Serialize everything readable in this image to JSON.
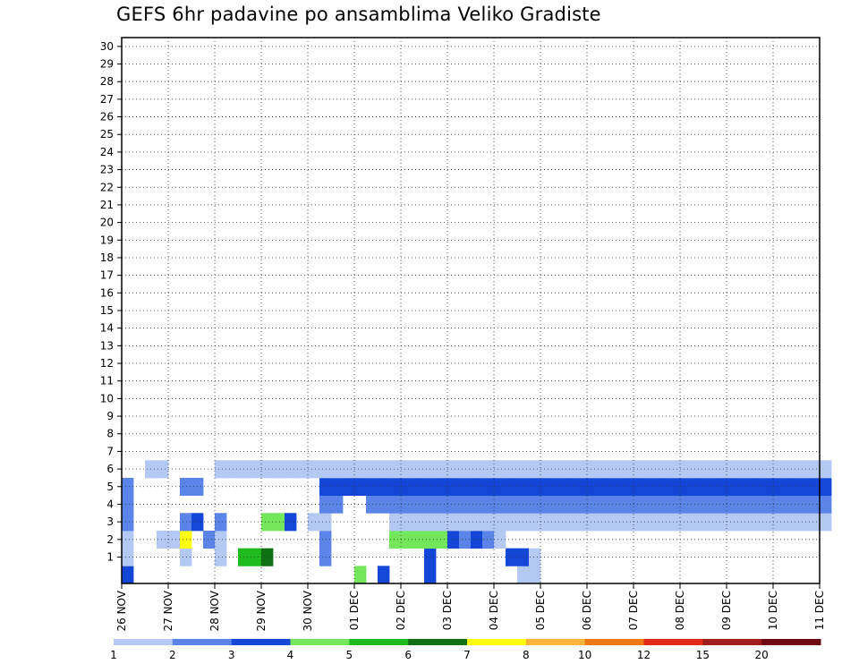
{
  "chart_data": {
    "type": "heatmap",
    "title": "GEFS 6hr padavine po ansamblima Veliko Gradiste",
    "xlabel": "",
    "ylabel": "",
    "x_tick_labels": [
      "26 NOV",
      "27 NOV",
      "28 NOV",
      "29 NOV",
      "30 NOV",
      "01 DEC",
      "02 DEC",
      "03 DEC",
      "04 DEC",
      "05 DEC",
      "06 DEC",
      "07 DEC",
      "08 DEC",
      "09 DEC",
      "10 DEC",
      "11 DEC"
    ],
    "y_tick_labels": [
      "1",
      "2",
      "3",
      "4",
      "5",
      "6",
      "7",
      "8",
      "9",
      "10",
      "11",
      "12",
      "13",
      "14",
      "15",
      "16",
      "17",
      "18",
      "19",
      "20",
      "21",
      "22",
      "23",
      "24",
      "25",
      "26",
      "27",
      "28",
      "29",
      "30"
    ],
    "x_range_hours": [
      0,
      360
    ],
    "y_range": [
      0,
      30
    ],
    "timestep_hours": 6,
    "grid": true,
    "colorbar": {
      "labels": [
        "1",
        "2",
        "3",
        "4",
        "5",
        "6",
        "7",
        "8",
        "10",
        "12",
        "15",
        "20"
      ],
      "colors": [
        "#b4c8f4",
        "#5a84e8",
        "#1446d8",
        "#74e65c",
        "#1eba1e",
        "#0f7014",
        "#ffff0f",
        "#fab43c",
        "#f07814",
        "#dc2d14",
        "#a01e1e",
        "#6e0a14"
      ]
    },
    "series": [
      {
        "member": 0,
        "cells": [
          [
            0,
            3
          ],
          [
            20,
            4
          ],
          [
            22,
            3
          ],
          [
            26,
            3
          ],
          [
            34,
            1
          ],
          [
            35,
            1
          ]
        ]
      },
      {
        "member": 1,
        "cells": [
          [
            0,
            1
          ],
          [
            5,
            1
          ],
          [
            8,
            1
          ],
          [
            10,
            5
          ],
          [
            11,
            5
          ],
          [
            12,
            6
          ],
          [
            17,
            2
          ],
          [
            26,
            3
          ],
          [
            33,
            3
          ],
          [
            34,
            3
          ],
          [
            35,
            1
          ]
        ]
      },
      {
        "member": 2,
        "cells": [
          [
            0,
            1
          ],
          [
            3,
            1
          ],
          [
            4,
            1
          ],
          [
            5,
            7
          ],
          [
            7,
            2
          ],
          [
            8,
            1
          ],
          [
            17,
            2
          ],
          [
            23,
            4
          ],
          [
            24,
            4
          ],
          [
            25,
            4
          ],
          [
            26,
            4
          ],
          [
            27,
            4
          ],
          [
            28,
            3
          ],
          [
            29,
            2
          ],
          [
            30,
            3
          ],
          [
            31,
            2
          ],
          [
            32,
            1
          ]
        ]
      },
      {
        "member": 3,
        "cells": [
          [
            0,
            2
          ],
          [
            5,
            2
          ],
          [
            6,
            3
          ],
          [
            8,
            2
          ],
          [
            12,
            4
          ],
          [
            13,
            4
          ],
          [
            14,
            3
          ],
          [
            16,
            1
          ],
          [
            17,
            1
          ],
          [
            23,
            1
          ],
          [
            24,
            1
          ],
          [
            25,
            1
          ],
          [
            26,
            1
          ],
          [
            27,
            1
          ],
          [
            28,
            1
          ],
          [
            29,
            1
          ],
          [
            30,
            1
          ],
          [
            31,
            1
          ],
          [
            32,
            1
          ],
          [
            33,
            1
          ],
          [
            34,
            1
          ],
          [
            35,
            1
          ],
          [
            36,
            1
          ],
          [
            37,
            1
          ],
          [
            38,
            1
          ],
          [
            39,
            1
          ],
          [
            40,
            1
          ],
          [
            41,
            1
          ],
          [
            42,
            1
          ],
          [
            43,
            1
          ],
          [
            44,
            1
          ],
          [
            45,
            1
          ],
          [
            46,
            1
          ],
          [
            47,
            1
          ],
          [
            48,
            1
          ],
          [
            49,
            1
          ],
          [
            50,
            1
          ],
          [
            51,
            1
          ],
          [
            52,
            1
          ],
          [
            53,
            1
          ],
          [
            54,
            1
          ],
          [
            55,
            1
          ],
          [
            56,
            1
          ],
          [
            57,
            1
          ],
          [
            58,
            1
          ],
          [
            59,
            1
          ],
          [
            60,
            1
          ]
        ]
      },
      {
        "member": 4,
        "cells": [
          [
            0,
            2
          ],
          [
            17,
            2
          ],
          [
            18,
            2
          ],
          [
            21,
            2
          ],
          [
            22,
            2
          ],
          [
            23,
            2
          ],
          [
            24,
            2
          ],
          [
            25,
            2
          ],
          [
            26,
            2
          ],
          [
            27,
            2
          ],
          [
            28,
            2
          ],
          [
            29,
            2
          ],
          [
            30,
            2
          ],
          [
            31,
            2
          ],
          [
            32,
            2
          ],
          [
            33,
            2
          ],
          [
            34,
            2
          ],
          [
            35,
            2
          ],
          [
            36,
            2
          ],
          [
            37,
            2
          ],
          [
            38,
            2
          ],
          [
            39,
            2
          ],
          [
            40,
            2
          ],
          [
            41,
            2
          ],
          [
            42,
            2
          ],
          [
            43,
            2
          ],
          [
            44,
            2
          ],
          [
            45,
            2
          ],
          [
            46,
            2
          ],
          [
            47,
            2
          ],
          [
            48,
            2
          ],
          [
            49,
            2
          ],
          [
            50,
            2
          ],
          [
            51,
            2
          ],
          [
            52,
            2
          ],
          [
            53,
            2
          ],
          [
            54,
            2
          ],
          [
            55,
            2
          ],
          [
            56,
            2
          ],
          [
            57,
            2
          ],
          [
            58,
            2
          ],
          [
            59,
            2
          ],
          [
            60,
            2
          ]
        ]
      },
      {
        "member": 5,
        "cells": [
          [
            0,
            2
          ],
          [
            5,
            2
          ],
          [
            6,
            2
          ],
          [
            17,
            3
          ],
          [
            18,
            3
          ],
          [
            19,
            3
          ],
          [
            20,
            3
          ],
          [
            21,
            3
          ],
          [
            22,
            3
          ],
          [
            23,
            3
          ],
          [
            24,
            3
          ],
          [
            25,
            3
          ],
          [
            26,
            3
          ],
          [
            27,
            3
          ],
          [
            28,
            3
          ],
          [
            29,
            3
          ],
          [
            30,
            3
          ],
          [
            31,
            3
          ],
          [
            32,
            3
          ],
          [
            33,
            3
          ],
          [
            34,
            3
          ],
          [
            35,
            3
          ],
          [
            36,
            3
          ],
          [
            37,
            3
          ],
          [
            38,
            3
          ],
          [
            39,
            3
          ],
          [
            40,
            3
          ],
          [
            41,
            3
          ],
          [
            42,
            3
          ],
          [
            43,
            3
          ],
          [
            44,
            3
          ],
          [
            45,
            3
          ],
          [
            46,
            3
          ],
          [
            47,
            3
          ],
          [
            48,
            3
          ],
          [
            49,
            3
          ],
          [
            50,
            3
          ],
          [
            51,
            3
          ],
          [
            52,
            3
          ],
          [
            53,
            3
          ],
          [
            54,
            3
          ],
          [
            55,
            3
          ],
          [
            56,
            3
          ],
          [
            57,
            3
          ],
          [
            58,
            3
          ],
          [
            59,
            3
          ],
          [
            60,
            3
          ]
        ]
      },
      {
        "member": 6,
        "cells": [
          [
            2,
            1
          ],
          [
            3,
            1
          ],
          [
            8,
            1
          ],
          [
            9,
            1
          ],
          [
            10,
            1
          ],
          [
            11,
            1
          ],
          [
            12,
            1
          ],
          [
            13,
            1
          ],
          [
            14,
            1
          ],
          [
            15,
            1
          ],
          [
            16,
            1
          ],
          [
            17,
            1
          ],
          [
            18,
            1
          ],
          [
            19,
            1
          ],
          [
            20,
            1
          ],
          [
            21,
            1
          ],
          [
            22,
            1
          ],
          [
            23,
            1
          ],
          [
            24,
            1
          ],
          [
            25,
            1
          ],
          [
            26,
            1
          ],
          [
            27,
            1
          ],
          [
            28,
            1
          ],
          [
            29,
            1
          ],
          [
            30,
            1
          ],
          [
            31,
            1
          ],
          [
            32,
            1
          ],
          [
            33,
            1
          ],
          [
            34,
            1
          ],
          [
            35,
            1
          ],
          [
            36,
            1
          ],
          [
            37,
            1
          ],
          [
            38,
            1
          ],
          [
            39,
            1
          ],
          [
            40,
            1
          ],
          [
            41,
            1
          ],
          [
            42,
            1
          ],
          [
            43,
            1
          ],
          [
            44,
            1
          ],
          [
            45,
            1
          ],
          [
            46,
            1
          ],
          [
            47,
            1
          ],
          [
            48,
            1
          ],
          [
            49,
            1
          ],
          [
            50,
            1
          ],
          [
            51,
            1
          ],
          [
            52,
            1
          ],
          [
            53,
            1
          ],
          [
            54,
            1
          ],
          [
            55,
            1
          ],
          [
            56,
            1
          ],
          [
            57,
            1
          ],
          [
            58,
            1
          ],
          [
            59,
            1
          ],
          [
            60,
            1
          ]
        ]
      }
    ]
  }
}
